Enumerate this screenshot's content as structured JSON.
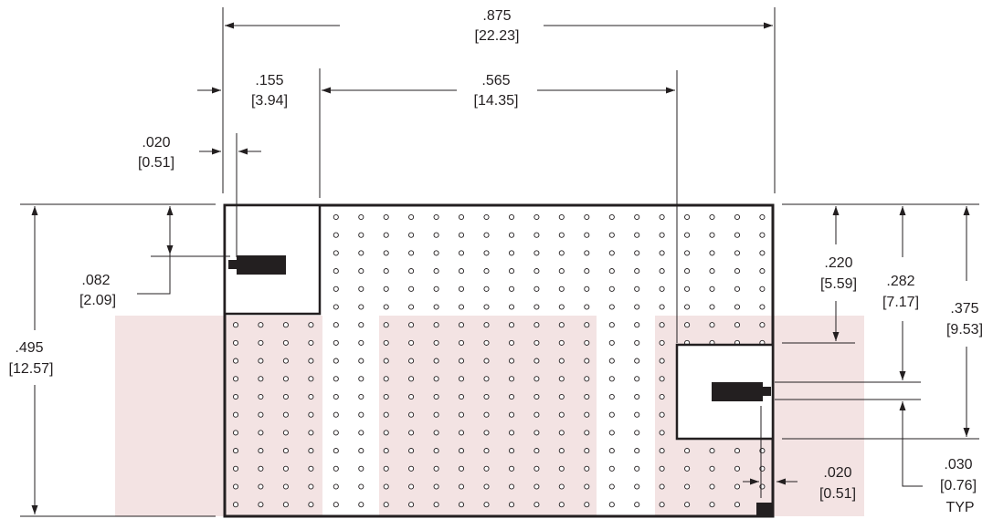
{
  "colors": {
    "ink": "#231f20",
    "keepout": "#f3e3e3"
  },
  "dimensions": {
    "overall_width": {
      "in": ".875",
      "mm": "[22.23]"
    },
    "pad_box_width": {
      "in": ".155",
      "mm": "[3.94]"
    },
    "pad_span": {
      "in": ".565",
      "mm": "[14.35]"
    },
    "edge_clearance": {
      "in": ".020",
      "mm": "[0.51]"
    },
    "pad1_offset": {
      "in": ".082",
      "mm": "[2.09]"
    },
    "overall_height": {
      "in": ".495",
      "mm": "[12.57]"
    },
    "pad2_top": {
      "in": ".220",
      "mm": "[5.59]"
    },
    "pad2_center": {
      "in": ".282",
      "mm": "[7.17]"
    },
    "pad2_bottom": {
      "in": ".375",
      "mm": "[9.53]"
    },
    "pad_width": {
      "in": ".030",
      "mm": "[0.76]",
      "note": "TYP"
    },
    "corner_clearance": {
      "in": ".020",
      "mm": "[0.51]"
    }
  }
}
